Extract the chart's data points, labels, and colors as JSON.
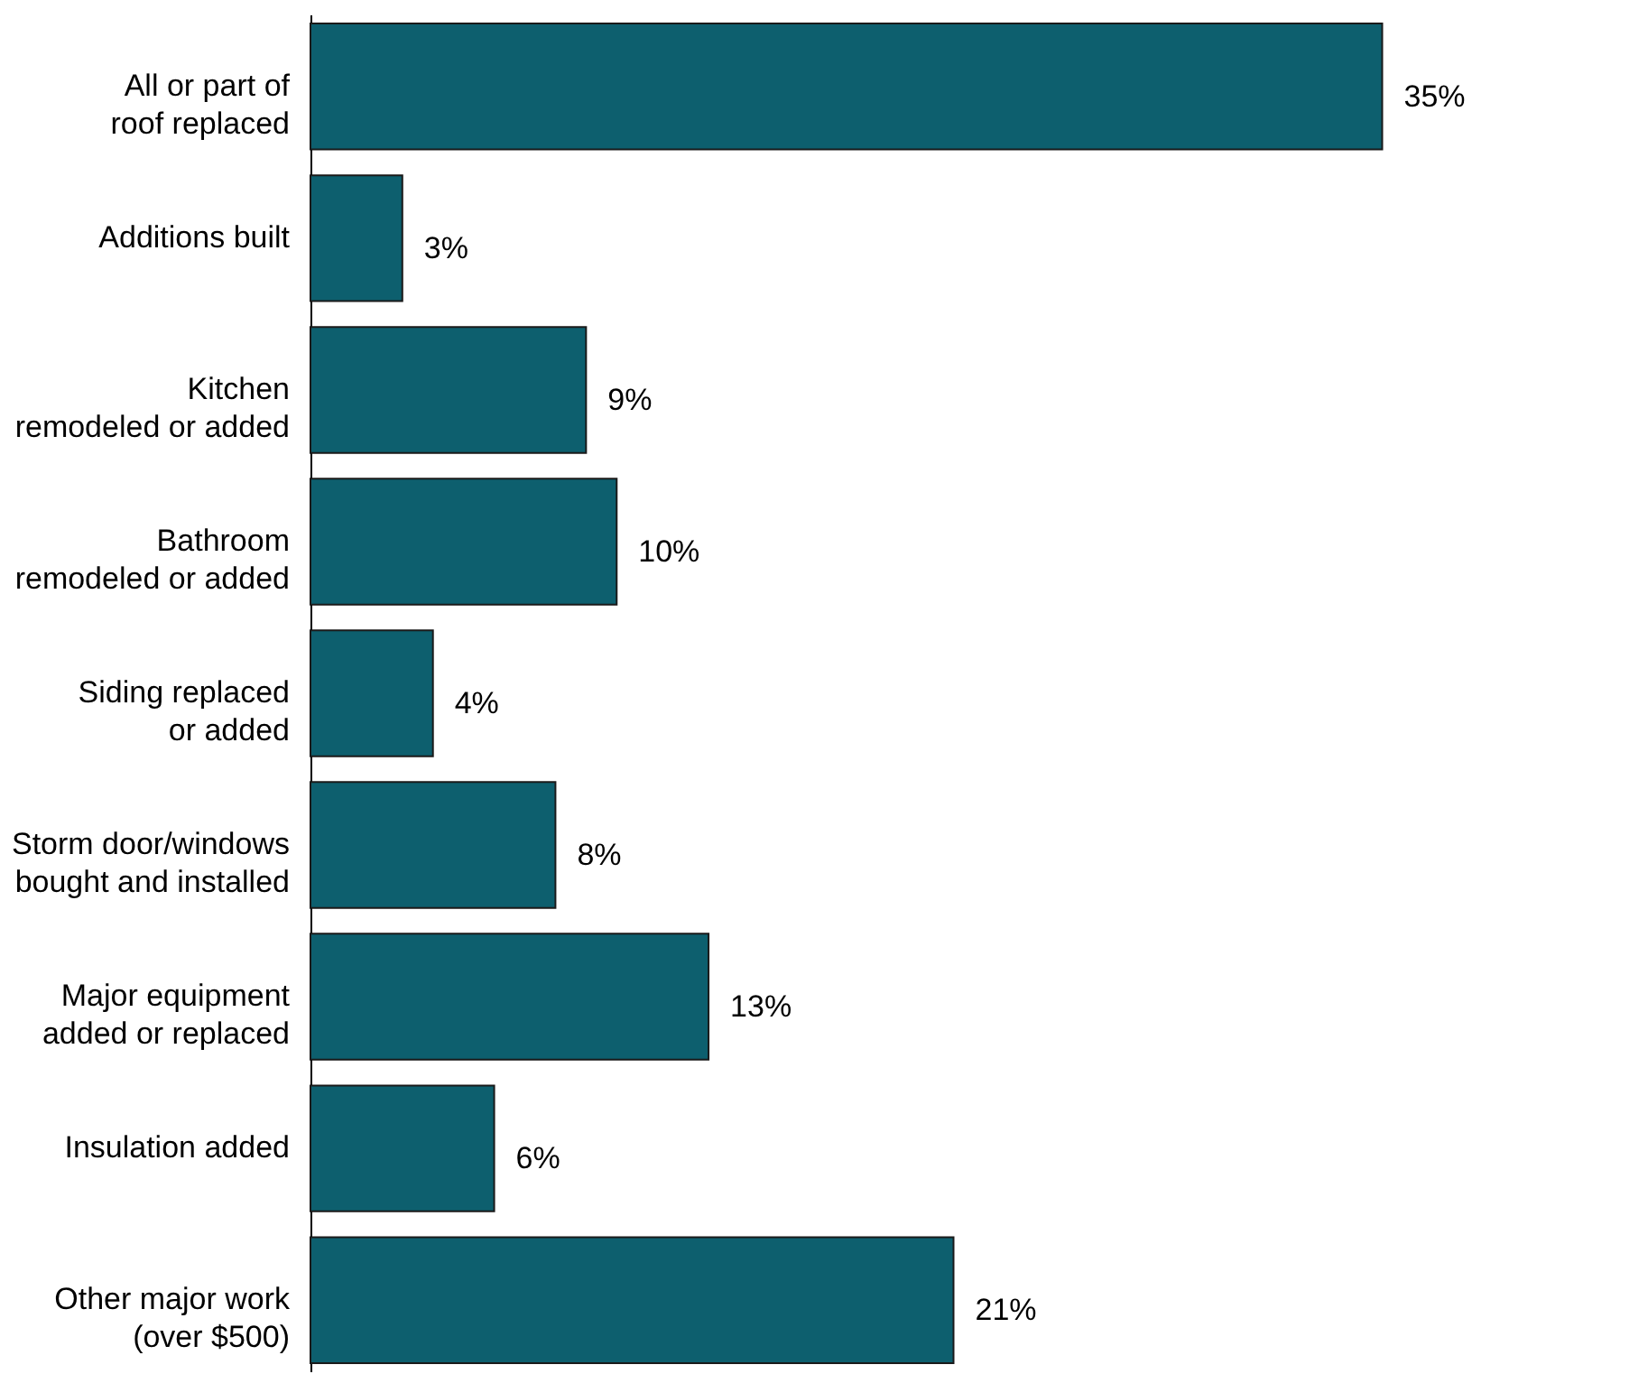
{
  "chart_data": {
    "type": "bar",
    "orientation": "horizontal",
    "categories": [
      "All or part of\nroof replaced",
      "Additions built",
      "Kitchen\nremodeled or added",
      "Bathroom\nremodeled or added",
      "Siding replaced\nor added",
      "Storm door/windows\nbought and installed",
      "Major equipment\nadded or replaced",
      "Insulation added",
      "Other major work\n(over $500)"
    ],
    "values": [
      35,
      3,
      9,
      10,
      4,
      8,
      13,
      6,
      21
    ],
    "value_labels": [
      "35%",
      "3%",
      "9%",
      "10%",
      "4%",
      "8%",
      "13%",
      "6%",
      "21%"
    ],
    "color": "#0d5f6e",
    "grid": false
  }
}
